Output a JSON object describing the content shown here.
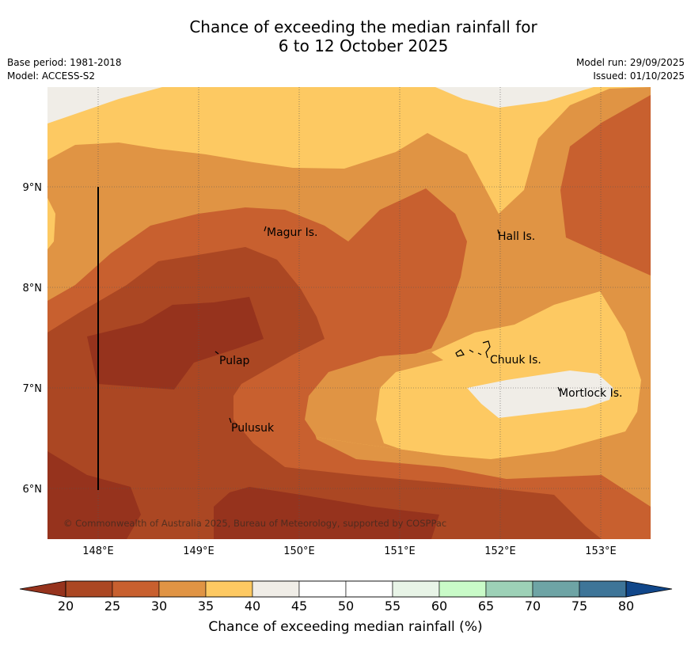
{
  "title": {
    "line1": "Chance of exceeding the median rainfall for",
    "line2": "6 to 12 October 2025"
  },
  "meta": {
    "base_period": "Base period: 1981-2018",
    "model": "Model: ACCESS-S2",
    "model_run": "Model run: 29/09/2025",
    "issued": "Issued: 01/10/2025"
  },
  "map": {
    "copyright": "© Commonwealth of Australia 2025, Bureau of Meteorology, supported by COSPPac",
    "lon_labels": [
      "148°E",
      "149°E",
      "150°E",
      "151°E",
      "152°E",
      "153°E"
    ],
    "lat_labels": [
      "9°N",
      "8°N",
      "7°N",
      "6°N"
    ],
    "places": [
      "Magur Is.",
      "Hall Is.",
      "Pulap",
      "Chuuk Is.",
      "Mortlock Is.",
      "Pulusuk"
    ]
  },
  "colorbar": {
    "label": "Chance of exceeding median rainfall (%)",
    "ticks": [
      "20",
      "25",
      "30",
      "35",
      "40",
      "45",
      "50",
      "55",
      "60",
      "65",
      "70",
      "75",
      "80"
    ],
    "colors": [
      "#ab4723",
      "#c8602f",
      "#e09444",
      "#fdc962",
      "#f0ede7",
      "#ffffff",
      "#ffffff",
      "#e8f4e7",
      "#c9fbc8",
      "#9dd1b7",
      "#6ea4a5",
      "#3e7598"
    ],
    "under_color": "#96331d",
    "over_color": "#11478a"
  }
}
